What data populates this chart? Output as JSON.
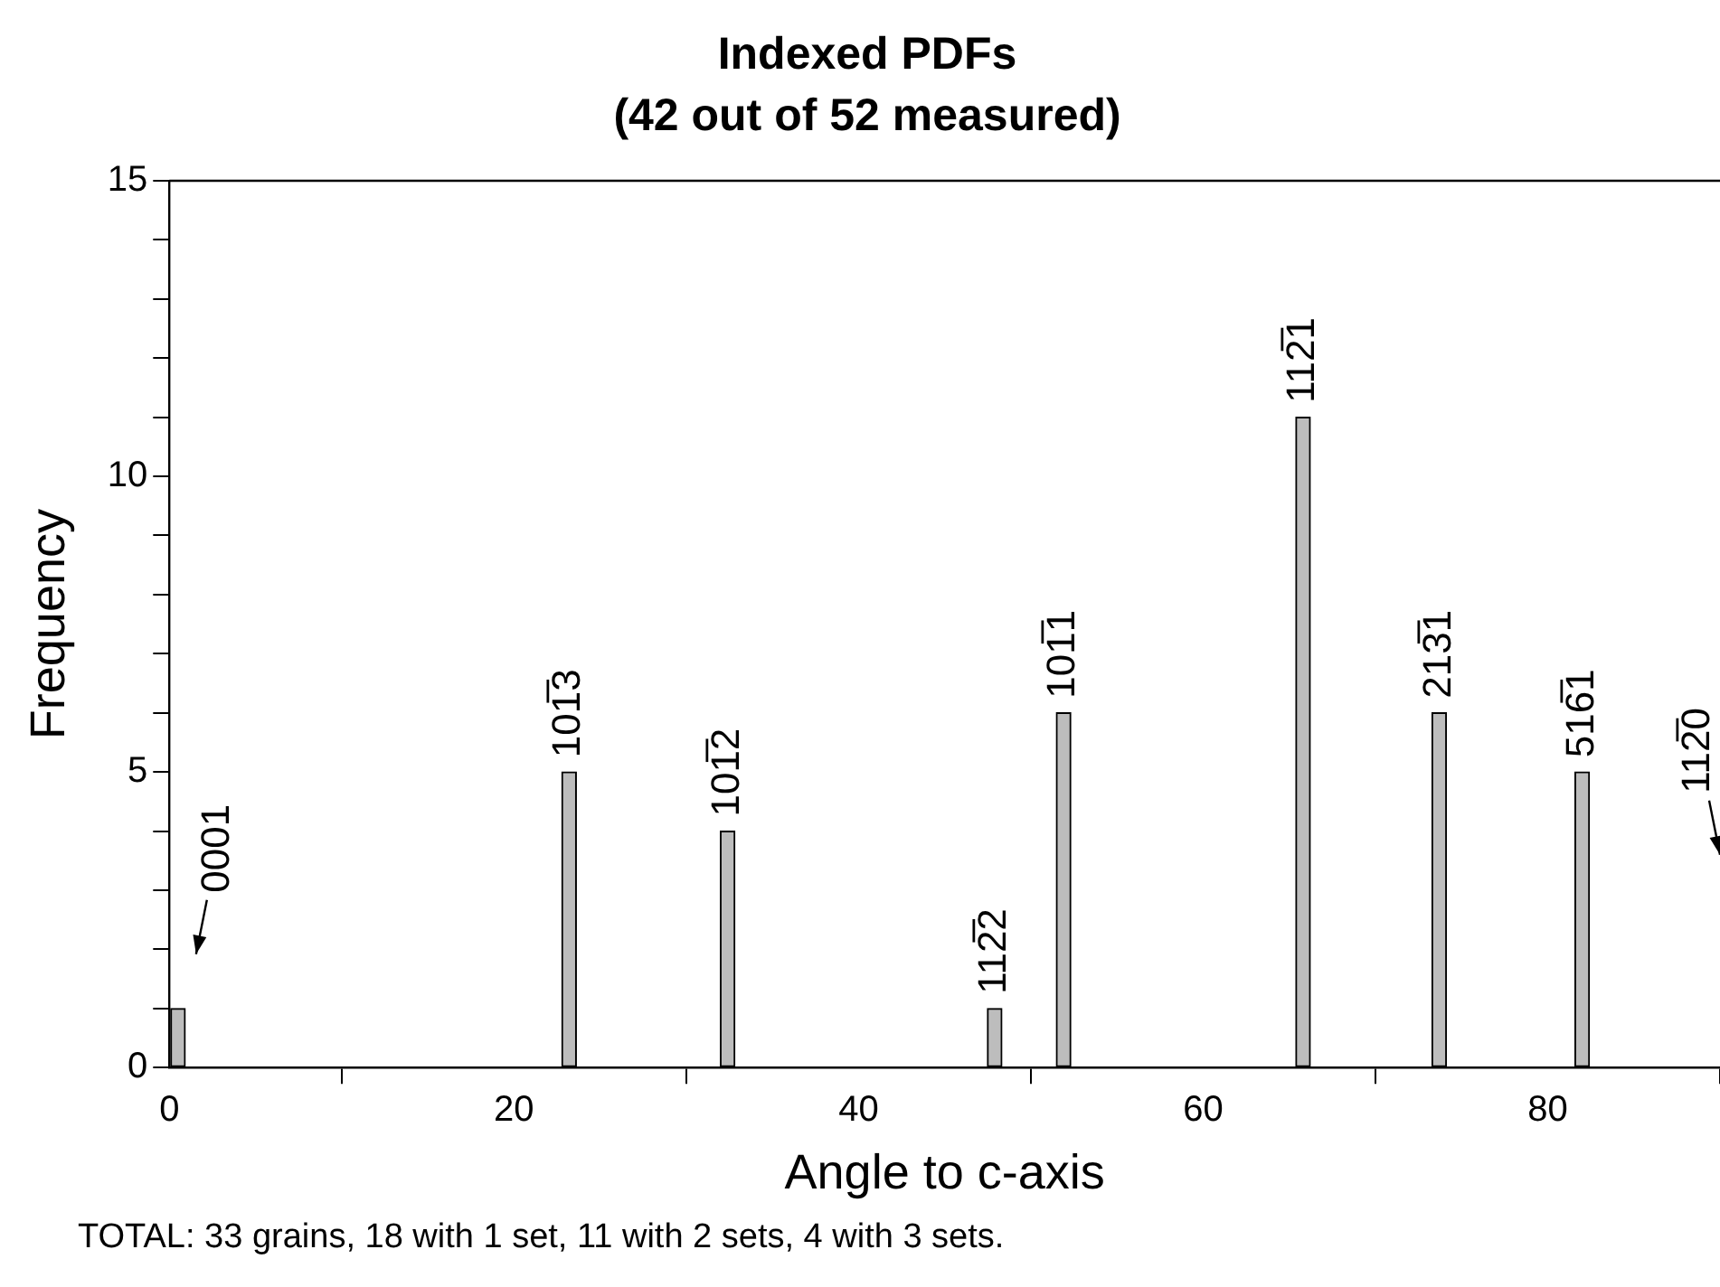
{
  "chart_data": {
    "type": "bar",
    "title": "Indexed PDFs",
    "subtitle": "(42 out of 52 measured)",
    "xlabel": "Angle to c-axis",
    "ylabel": "Frequency",
    "x": [
      0.5,
      23.2,
      32.4,
      47.9,
      51.9,
      65.8,
      73.7,
      82.0
    ],
    "values": [
      1,
      5,
      4,
      1,
      6,
      11,
      6,
      5
    ],
    "color": "#bdbdbd",
    "xlim": [
      0,
      90
    ],
    "xticks": [
      0,
      20,
      40,
      60,
      80
    ],
    "ylim": [
      0,
      15
    ],
    "yticks": [
      0,
      {
        "value": 1,
        "label": null
      },
      {
        "value": 2,
        "label": null
      },
      {
        "value": 3,
        "label": null
      },
      {
        "value": 4,
        "label": null
      },
      5,
      {
        "value": 6,
        "label": null
      },
      {
        "value": 7,
        "label": null
      },
      {
        "value": 8,
        "label": null
      },
      {
        "value": 9,
        "label": null
      },
      10,
      {
        "value": 11,
        "label": null
      },
      {
        "value": 12,
        "label": null
      },
      {
        "value": 13,
        "label": null
      },
      {
        "value": 14,
        "label": null
      },
      15
    ],
    "grid": false,
    "annotations": [
      {
        "text": "0001",
        "x": 0.5,
        "y": 1
      },
      {
        "text": "101̅3",
        "x": 23.2,
        "y": 5
      },
      {
        "text": "101̅2",
        "x": 32.4,
        "y": 4
      },
      {
        "text": "112̅2",
        "x": 47.9,
        "y": 1
      },
      {
        "text": "101̅1",
        "x": 51.9,
        "y": 6
      },
      {
        "text": "112̅1",
        "x": 65.8,
        "y": 11
      },
      {
        "text": "213̅1",
        "x": 73.7,
        "y": 6
      },
      {
        "text": "516̅1",
        "x": 82.0,
        "y": 5
      },
      "112̅0",
      "TOTAL: 33 grains, 18 with 1 set, 11 with 2 sets, 4 with 3 sets."
    ]
  }
}
